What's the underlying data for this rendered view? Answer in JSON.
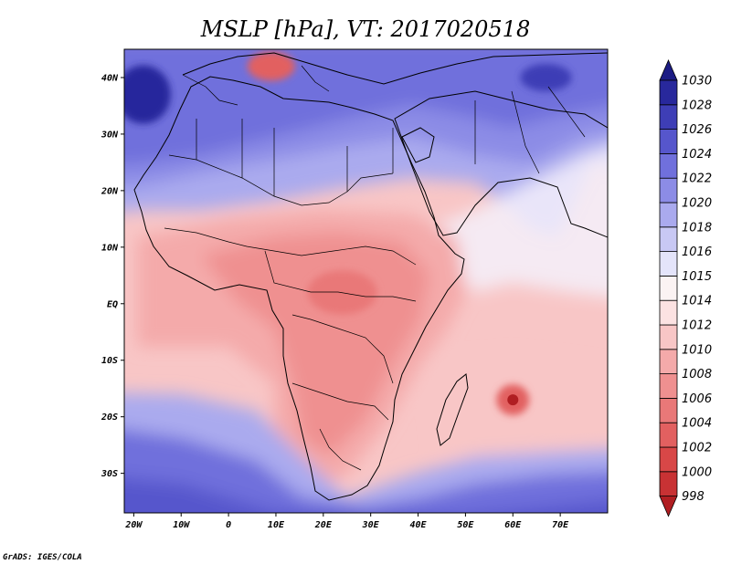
{
  "chart_data": {
    "type": "heatmap",
    "title": "MSLP [hPa], VT: 2017020518",
    "variable": "MSLP",
    "units": "hPa",
    "valid_time": "2017020518",
    "lon_range": [
      -22,
      80
    ],
    "lat_range": [
      -37,
      45
    ],
    "x_ticks": [
      {
        "value": -20,
        "label": "20W"
      },
      {
        "value": -10,
        "label": "10W"
      },
      {
        "value": 0,
        "label": "0"
      },
      {
        "value": 10,
        "label": "10E"
      },
      {
        "value": 20,
        "label": "20E"
      },
      {
        "value": 30,
        "label": "30E"
      },
      {
        "value": 40,
        "label": "40E"
      },
      {
        "value": 50,
        "label": "50E"
      },
      {
        "value": 60,
        "label": "60E"
      },
      {
        "value": 70,
        "label": "70E"
      }
    ],
    "y_ticks": [
      {
        "value": 40,
        "label": "40N"
      },
      {
        "value": 30,
        "label": "30N"
      },
      {
        "value": 20,
        "label": "20N"
      },
      {
        "value": 10,
        "label": "10N"
      },
      {
        "value": 0,
        "label": "EQ"
      },
      {
        "value": -10,
        "label": "10S"
      },
      {
        "value": -20,
        "label": "20S"
      },
      {
        "value": -30,
        "label": "30S"
      }
    ],
    "colorbar": {
      "levels": [
        998,
        1000,
        1002,
        1004,
        1006,
        1008,
        1010,
        1012,
        1014,
        1015,
        1016,
        1018,
        1020,
        1022,
        1024,
        1026,
        1028,
        1030
      ],
      "colors": [
        "#b01e22",
        "#c83234",
        "#d84747",
        "#e26060",
        "#e97878",
        "#ef9090",
        "#f4aaaa",
        "#f8c6c6",
        "#fce2e2",
        "#fbf3f3",
        "#e4e4fa",
        "#c8c8f4",
        "#aaaaee",
        "#8c8ce6",
        "#7070dc",
        "#5656cc",
        "#3e3eb6",
        "#28289c",
        "#1c1c84"
      ]
    },
    "features": [
      {
        "name": "high-pressure-north-atlantic",
        "lon": -18,
        "lat": 37,
        "value": 1029
      },
      {
        "name": "high-pressure-central-asia",
        "lon": 67,
        "lat": 40,
        "value": 1028
      },
      {
        "name": "low-pressure-mediterranean",
        "lon": 9,
        "lat": 42,
        "value": 1004
      },
      {
        "name": "low-pressure-congo-basin",
        "lon": 24,
        "lat": 2,
        "value": 1008
      },
      {
        "name": "tropical-low-mascarenes",
        "lon": 60,
        "lat": -17,
        "value": 998
      },
      {
        "name": "high-pressure-southern-ocean",
        "lon": 40,
        "lat": -35,
        "value": 1026
      }
    ]
  },
  "credit": "GrADS: IGES/COLA"
}
